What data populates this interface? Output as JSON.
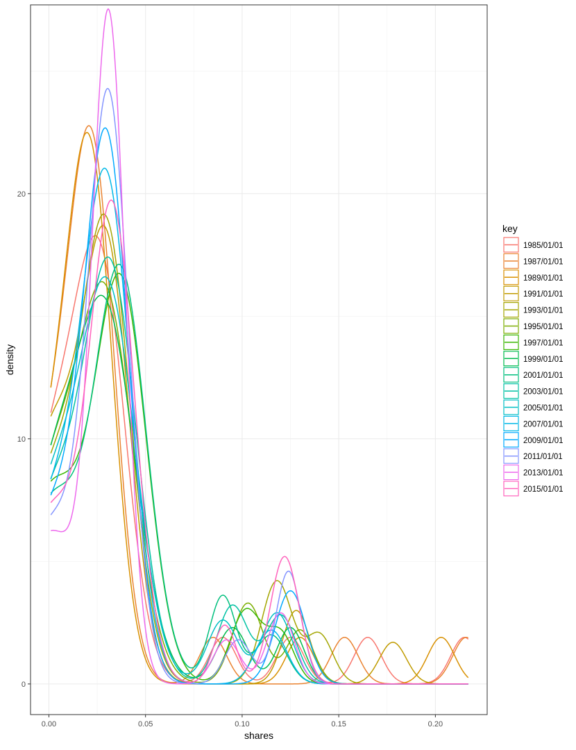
{
  "chart_data": {
    "type": "line",
    "title": "",
    "xlabel": "shares",
    "ylabel": "density",
    "xlim": [
      -0.0095,
      0.2268
    ],
    "ylim": [
      -1.25,
      27.7
    ],
    "x_ticks": [
      0.0,
      0.05,
      0.1,
      0.15,
      0.2
    ],
    "x_tick_labels": [
      "0.00",
      "0.05",
      "0.10",
      "0.15",
      "0.20"
    ],
    "y_ticks": [
      0,
      10,
      20
    ],
    "y_tick_labels": [
      "0",
      "10",
      "20"
    ],
    "grid": true,
    "legend": {
      "title": "key",
      "position": "right"
    },
    "x_range": [
      0.001,
      0.217
    ],
    "series": [
      {
        "name": "1985/01/01",
        "color": "#F8766D",
        "base": 8.9,
        "peaks": [
          [
            0.027,
            16.0,
            0.013
          ],
          [
            0.09,
            1.9,
            0.007
          ],
          [
            0.125,
            1.9,
            0.007
          ],
          [
            0.165,
            1.9,
            0.007
          ],
          [
            0.215,
            1.9,
            0.007
          ]
        ]
      },
      {
        "name": "1987/01/01",
        "color": "#EA8331",
        "base": 9.0,
        "peaks": [
          [
            0.023,
            19.4,
            0.0115
          ],
          [
            0.085,
            1.9,
            0.007
          ],
          [
            0.153,
            1.9,
            0.007
          ],
          [
            0.216,
            1.9,
            0.007
          ]
        ]
      },
      {
        "name": "1989/01/01",
        "color": "#D89000",
        "base": 8.5,
        "peaks": [
          [
            0.022,
            19.0,
            0.0115
          ],
          [
            0.13,
            1.9,
            0.007
          ],
          [
            0.203,
            1.9,
            0.007
          ]
        ]
      },
      {
        "name": "1991/01/01",
        "color": "#C09B00",
        "base": 10.0,
        "peaks": [
          [
            0.03,
            17.0,
            0.012
          ],
          [
            0.128,
            3.0,
            0.007
          ],
          [
            0.178,
            1.7,
            0.007
          ]
        ]
      },
      {
        "name": "1993/01/01",
        "color": "#A3A500",
        "base": 8.2,
        "peaks": [
          [
            0.03,
            17.8,
            0.0125
          ],
          [
            0.118,
            4.2,
            0.008
          ],
          [
            0.14,
            2.0,
            0.007
          ]
        ]
      },
      {
        "name": "1995/01/01",
        "color": "#7CAE00",
        "base": 8.0,
        "peaks": [
          [
            0.03,
            15.0,
            0.014
          ],
          [
            0.103,
            3.3,
            0.008
          ],
          [
            0.13,
            2.2,
            0.007
          ]
        ]
      },
      {
        "name": "1997/01/01",
        "color": "#39B600",
        "base": 7.8,
        "peaks": [
          [
            0.037,
            16.3,
            0.0135
          ],
          [
            0.102,
            3.0,
            0.008
          ],
          [
            0.12,
            2.0,
            0.007
          ]
        ]
      },
      {
        "name": "1999/01/01",
        "color": "#00BB4E",
        "base": 7.5,
        "peaks": [
          [
            0.03,
            14.5,
            0.015
          ],
          [
            0.095,
            2.3,
            0.008
          ],
          [
            0.125,
            2.3,
            0.007
          ]
        ]
      },
      {
        "name": "2001/01/01",
        "color": "#00BF7D",
        "base": 7.3,
        "peaks": [
          [
            0.037,
            16.7,
            0.0135
          ],
          [
            0.09,
            3.6,
            0.007
          ],
          [
            0.115,
            2.0,
            0.008
          ]
        ]
      },
      {
        "name": "2003/01/01",
        "color": "#00C1A3",
        "base": 7.2,
        "peaks": [
          [
            0.032,
            16.5,
            0.0135
          ],
          [
            0.095,
            3.2,
            0.008
          ],
          [
            0.12,
            2.8,
            0.008
          ]
        ]
      },
      {
        "name": "2005/01/01",
        "color": "#00BFC4",
        "base": 7.4,
        "peaks": [
          [
            0.031,
            15.5,
            0.014
          ],
          [
            0.09,
            2.6,
            0.008
          ],
          [
            0.118,
            2.9,
            0.008
          ]
        ]
      },
      {
        "name": "2007/01/01",
        "color": "#00B8E7",
        "base": 7.0,
        "peaks": [
          [
            0.03,
            19.9,
            0.0125
          ],
          [
            0.115,
            2.2,
            0.008
          ]
        ]
      },
      {
        "name": "2009/01/01",
        "color": "#00A9FF",
        "base": 6.8,
        "peaks": [
          [
            0.03,
            21.6,
            0.0115
          ],
          [
            0.125,
            3.8,
            0.008
          ]
        ]
      },
      {
        "name": "2011/01/01",
        "color": "#8494FF",
        "base": 6.5,
        "peaks": [
          [
            0.031,
            23.4,
            0.0105
          ],
          [
            0.124,
            4.6,
            0.0065
          ],
          [
            0.098,
            1.8,
            0.007
          ]
        ]
      },
      {
        "name": "2013/01/01",
        "color": "#ED68ED",
        "base": 6.2,
        "peaks": [
          [
            0.031,
            26.7,
            0.0085
          ],
          [
            0.12,
            2.9,
            0.007
          ],
          [
            0.092,
            1.8,
            0.007
          ]
        ]
      },
      {
        "name": "2015/01/01",
        "color": "#FF62BC",
        "base": 7.0,
        "peaks": [
          [
            0.033,
            19.0,
            0.0115
          ],
          [
            0.122,
            5.2,
            0.0075
          ],
          [
            0.091,
            2.4,
            0.006
          ]
        ]
      }
    ]
  }
}
